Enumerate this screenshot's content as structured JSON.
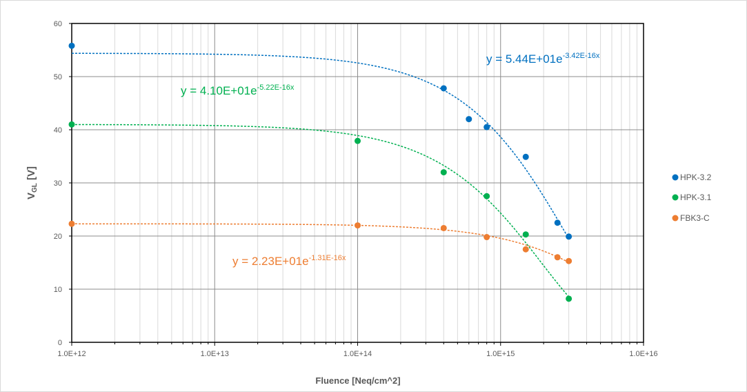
{
  "chart_data": {
    "type": "scatter",
    "title": "",
    "xlabel": "Fluence [Neq/cm^2]",
    "ylabel": {
      "main": "V",
      "sub": "GL",
      "rest": " [V]"
    },
    "xscale": "log",
    "xlim": [
      1000000000000.0,
      1e+16
    ],
    "ylim": [
      0,
      60
    ],
    "xticks": [
      {
        "value": 1000000000000.0,
        "label": "1.0E+12"
      },
      {
        "value": 10000000000000.0,
        "label": "1.0E+13"
      },
      {
        "value": 100000000000000.0,
        "label": "1.0E+14"
      },
      {
        "value": 1000000000000000.0,
        "label": "1.0E+15"
      },
      {
        "value": 1e+16,
        "label": "1.0E+16"
      }
    ],
    "yticks": [
      0,
      10,
      20,
      30,
      40,
      50,
      60
    ],
    "grid": true,
    "legend_position": "right",
    "series": [
      {
        "name": "HPK-3.2",
        "color": "#0070c0",
        "points": [
          [
            1000000000000.0,
            55.8
          ],
          [
            400000000000000.0,
            47.8
          ],
          [
            600000000000000.0,
            42.0
          ],
          [
            800000000000000.0,
            40.5
          ],
          [
            1500000000000000.0,
            34.9
          ],
          [
            2500000000000000.0,
            22.5
          ],
          [
            3000000000000000.0,
            19.9
          ]
        ],
        "trend": {
          "a": 54.4,
          "b": -3.42e-16,
          "equation": {
            "base": "y = 5.44E+01e",
            "exp": "-3.42E-16x"
          }
        }
      },
      {
        "name": "HPK-3.1",
        "color": "#00b050",
        "points": [
          [
            1000000000000.0,
            41.0
          ],
          [
            100000000000000.0,
            37.9
          ],
          [
            400000000000000.0,
            32.0
          ],
          [
            800000000000000.0,
            27.5
          ],
          [
            1500000000000000.0,
            20.3
          ],
          [
            3000000000000000.0,
            8.2
          ]
        ],
        "trend": {
          "a": 41.0,
          "b": -5.22e-16,
          "equation": {
            "base": "y = 4.10E+01e",
            "exp": "-5.22E-16x"
          }
        }
      },
      {
        "name": "FBK3-C",
        "color": "#ed7d31",
        "points": [
          [
            1000000000000.0,
            22.3
          ],
          [
            100000000000000.0,
            22.0
          ],
          [
            400000000000000.0,
            21.5
          ],
          [
            800000000000000.0,
            19.8
          ],
          [
            1500000000000000.0,
            17.5
          ],
          [
            2500000000000000.0,
            16.0
          ],
          [
            3000000000000000.0,
            15.3
          ]
        ],
        "trend": {
          "a": 22.3,
          "b": -1.31e-16,
          "equation": {
            "base": "y = 2.23E+01e",
            "exp": "-1.31E-16x"
          }
        }
      }
    ]
  }
}
